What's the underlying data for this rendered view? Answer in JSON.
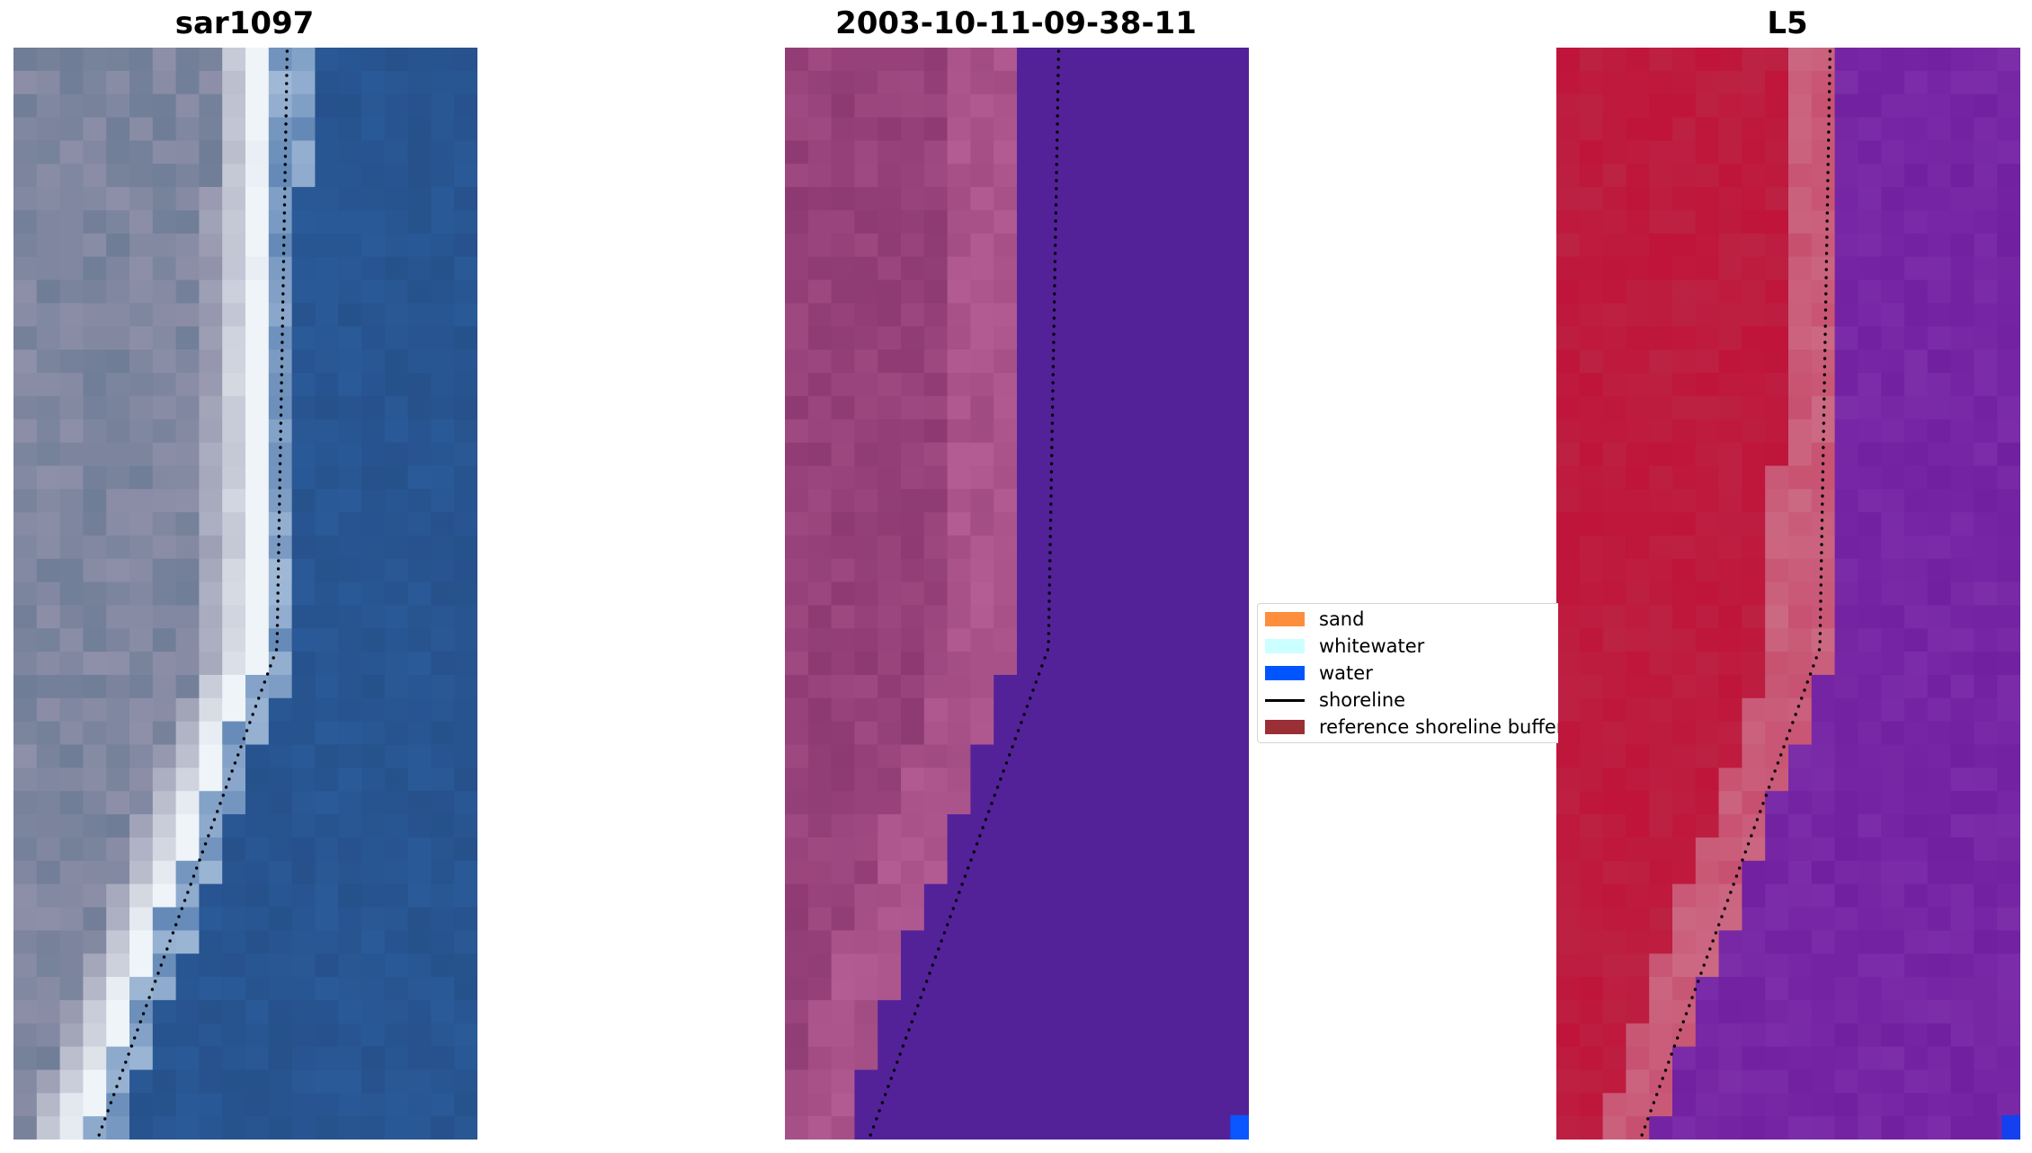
{
  "panels": [
    {
      "title": "sar1097",
      "colors": {
        "land_a": "#8e8fa8",
        "land_b": "#6f7d96",
        "surf": "#eef4f8",
        "water": "#2a5a98"
      }
    },
    {
      "title": "2003-10-11-09-38-11",
      "colors": {
        "land_a": "#8e3a72",
        "land_b": "#b45c94",
        "water": "#532299",
        "water_pixel": "#0a56ff"
      }
    },
    {
      "title": "L5",
      "colors": {
        "land_a": "#c0143a",
        "land_b": "#c7506f",
        "water": "#7120a0",
        "water_pixel": "#1440f0"
      }
    }
  ],
  "legend": {
    "items": [
      {
        "label": "sand",
        "color": "#fd8e3c",
        "kind": "patch"
      },
      {
        "label": "whitewater",
        "color": "#ccffff",
        "kind": "patch"
      },
      {
        "label": "water",
        "color": "#0055ff",
        "kind": "patch"
      },
      {
        "label": "shoreline",
        "color": "#000000",
        "kind": "line"
      },
      {
        "label": "reference shoreline buffer",
        "color": "#9b2f36",
        "kind": "patch"
      }
    ]
  }
}
